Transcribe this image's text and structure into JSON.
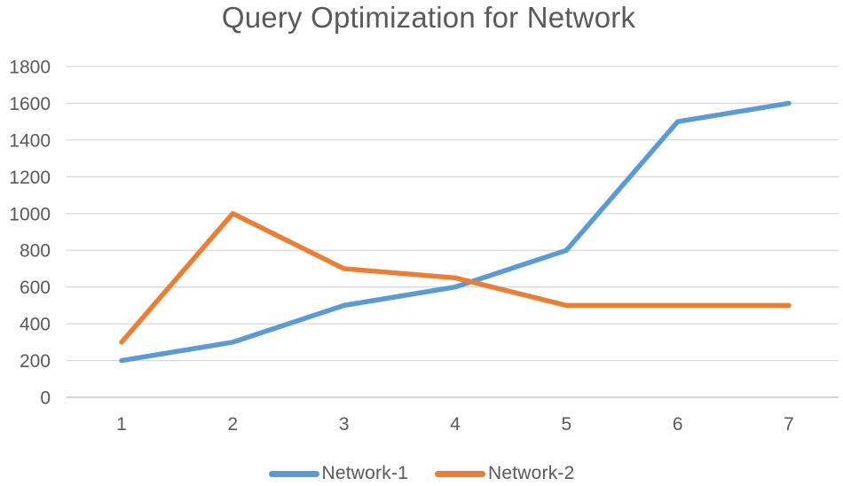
{
  "title": "Query Optimization for Network",
  "colors": {
    "background": "#FFFFFF",
    "series1": "#5B9BD5",
    "series2": "#ED7D31",
    "gridline": "#D9D9D9",
    "axis_line": "#D2D2D2",
    "axis_text": "#595959",
    "title_text": "#595959"
  },
  "chart_data": {
    "type": "line",
    "title": "Query Optimization for Network",
    "categories": [
      "1",
      "2",
      "3",
      "4",
      "5",
      "6",
      "7"
    ],
    "x": [
      1,
      2,
      3,
      4,
      5,
      6,
      7
    ],
    "series": [
      {
        "name": "Network-1",
        "color": "#5B9BD5",
        "values": [
          200,
          300,
          500,
          600,
          800,
          1500,
          1600
        ]
      },
      {
        "name": "Network-2",
        "color": "#ED7D31",
        "values": [
          300,
          1000,
          700,
          650,
          500,
          500,
          500
        ]
      }
    ],
    "xlabel": "",
    "ylabel": "",
    "ylim": [
      0,
      1800
    ],
    "ytick_step": 200,
    "yticks": [
      "0",
      "200",
      "400",
      "600",
      "800",
      "1000",
      "1200",
      "1400",
      "1600",
      "1800"
    ],
    "grid": true,
    "legend_position": "bottom"
  }
}
